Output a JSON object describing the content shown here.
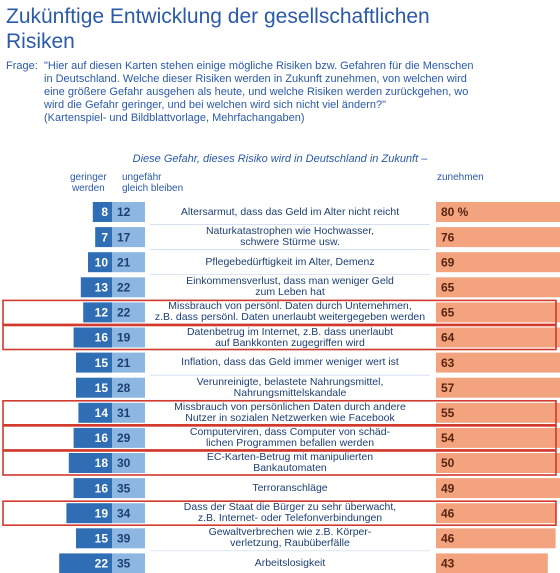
{
  "chart_data": {
    "type": "risk-table",
    "title": "Zukünftige Entwicklung der gesellschaftlichen\nRisiken",
    "question_label": "Frage:",
    "question": "\"Hier auf diesen Karten stehen einige mögliche Risiken bzw. Gefahren für die Menschen\nin Deutschland. Welche dieser Risiken werden in Zukunft zunehmen, von welchen wird\neine größere Gefahr ausgehen als heute, und welche Risiken werden zurückgehen, wo\nwird die Gefahr geringer, und bei welchen wird sich nicht viel ändern?\"\n(Kartenspiel- und Bildblattvorlage, Mehrfachangaben)",
    "subtitle": "Diese Gefahr, dieses Risiko wird in Deutschland in Zukunft –",
    "categories": [
      "Altersarmut, dass das Geld im Alter nicht reicht",
      "Naturkatastrophen wie Hochwasser,\nschwere Stürme usw.",
      "Pflegebedürftigkeit im Alter, Demenz",
      "Einkommensverlust, dass man weniger Geld\nzum Leben hat",
      "Missbrauch von persönl. Daten durch Unternehmen,\nz.B. dass persönl. Daten unerlaubt weitergegeben werden",
      "Datenbetrug im Internet, z.B. dass unerlaubt\nauf Bankkonten zugegriffen wird",
      "Inflation, dass das Geld immer weniger wert ist",
      "Verunreinigte, belastete Nahrungsmittel,\nNahrungsmittelskandale",
      "Missbrauch von persönlichen Daten durch andere\nNutzer in sozialen Netzwerken wie Facebook",
      "Computerviren, dass Computer von schäd-\nlichen Programmen befallen werden",
      "EC-Karten-Betrug mit manipulierten\nBankautomaten",
      "Terroranschläge",
      "Dass der Staat die Bürger zu sehr überwacht,\nz.B. Internet- oder Telefonverbindungen",
      "Gewaltverbrechen wie z.B. Körper-\nverletzung, Raubüberfälle",
      "Arbeitslosigkeit"
    ],
    "highlight": [
      false,
      false,
      false,
      false,
      true,
      true,
      false,
      false,
      true,
      true,
      true,
      false,
      true,
      false,
      false
    ],
    "series": [
      {
        "name": "geringer\nwerden",
        "color": "#2f6db4",
        "values": [
          8,
          7,
          10,
          13,
          12,
          16,
          15,
          15,
          14,
          16,
          18,
          16,
          19,
          15,
          22
        ]
      },
      {
        "name": "ungefähr\ngleich bleiben",
        "color": "#8db7e0",
        "values": [
          12,
          17,
          21,
          22,
          22,
          19,
          21,
          28,
          31,
          29,
          30,
          35,
          34,
          39,
          35
        ]
      },
      {
        "name": "zunehmen",
        "color": "#f3a47f",
        "values": [
          80,
          76,
          69,
          65,
          65,
          64,
          63,
          57,
          55,
          54,
          50,
          49,
          46,
          46,
          43
        ],
        "value_labels": [
          "80 %",
          "76",
          "69",
          "65",
          "65",
          "64",
          "63",
          "57",
          "55",
          "54",
          "50",
          "49",
          "46",
          "46",
          "43"
        ]
      }
    ]
  }
}
